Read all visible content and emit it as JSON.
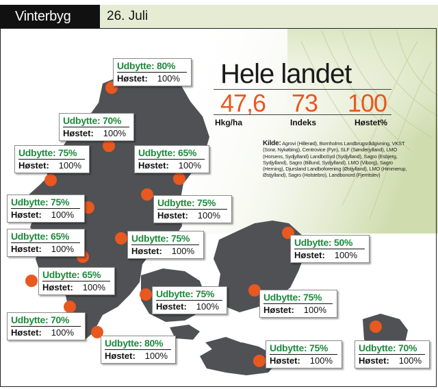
{
  "header": {
    "section": "Vinterbyg",
    "date": "26. Juli"
  },
  "summary": {
    "title": "Hele landet",
    "stats": [
      {
        "value": "47,6",
        "label": "Hkg/ha"
      },
      {
        "value": "73",
        "label": "Indeks"
      },
      {
        "value": "100",
        "label": "Høstet%"
      }
    ]
  },
  "source": {
    "heading": "Kilde:",
    "text": "Agrovi (Hillerød), Bornholms Landbrugsrådgivning, VKST (Sorø, Nykøbing), Centrovice (Fyn), SLF (Sønderjylland), LMO (Horsens, Sydjylland) LandboSyd (Sydjylland), Sagro (Esbjerg, Sydjylland), Sagro (Billund, Sydjylland), LMO (Viborg), Sagro (Herning), Djursland Landboforening (Østjylland), LMO (Himmerup, Østjylland), Sagro (Holstebro), Landbonord (Fjerritslev)"
  },
  "labels": {
    "yield_prefix": "Udbytte:",
    "harvest_prefix": "Høstet:"
  },
  "regions": [
    {
      "yield": "80%",
      "harvested": "100%"
    },
    {
      "yield": "70%",
      "harvested": "100%"
    },
    {
      "yield": "75%",
      "harvested": "100%"
    },
    {
      "yield": "65%",
      "harvested": "100%"
    },
    {
      "yield": "75%",
      "harvested": "100%"
    },
    {
      "yield": "75%",
      "harvested": "100%"
    },
    {
      "yield": "65%",
      "harvested": "100%"
    },
    {
      "yield": "75%",
      "harvested": "100%"
    },
    {
      "yield": "50%",
      "harvested": "100%"
    },
    {
      "yield": "65%",
      "harvested": "100%"
    },
    {
      "yield": "75%",
      "harvested": "100%"
    },
    {
      "yield": "75%",
      "harvested": "100%"
    },
    {
      "yield": "70%",
      "harvested": "100%"
    },
    {
      "yield": "80%",
      "harvested": "100%"
    },
    {
      "yield": "75%",
      "harvested": "100%"
    },
    {
      "yield": "70%",
      "harvested": "100%"
    }
  ],
  "colors": {
    "land": "#4f5154",
    "marker": "#e8581f",
    "yield_text": "#1d8a3c",
    "stat_text": "#e8581f",
    "header_band": "#e6ecd3"
  }
}
